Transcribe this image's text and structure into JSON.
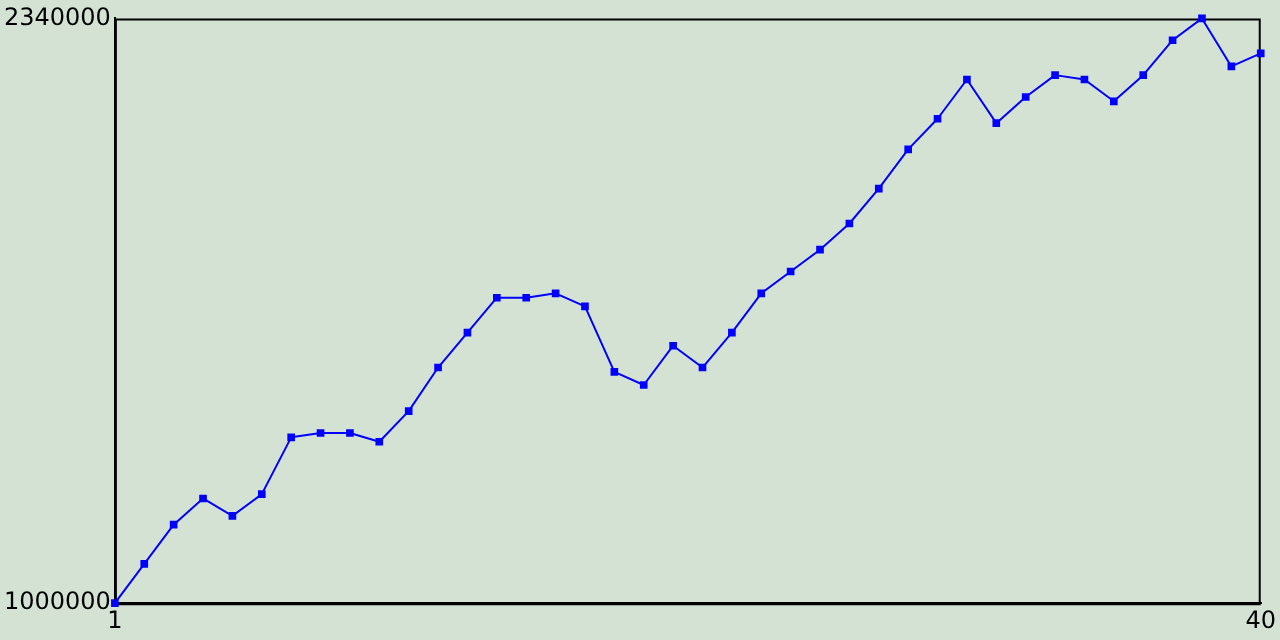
{
  "chart_data": {
    "type": "line",
    "x": [
      1,
      2,
      3,
      4,
      5,
      6,
      7,
      8,
      9,
      10,
      11,
      12,
      13,
      14,
      15,
      16,
      17,
      18,
      19,
      20,
      21,
      22,
      23,
      24,
      25,
      26,
      27,
      28,
      29,
      30,
      31,
      32,
      33,
      34,
      35,
      36,
      37,
      38,
      39,
      40
    ],
    "series": [
      {
        "color": "#0000ff",
        "values": [
          1000000,
          1090000,
          1180000,
          1240000,
          1200000,
          1250000,
          1380000,
          1390000,
          1390000,
          1370000,
          1440000,
          1540000,
          1620000,
          1700000,
          1700000,
          1710000,
          1680000,
          1530000,
          1500000,
          1590000,
          1540000,
          1620000,
          1710000,
          1760000,
          1810000,
          1870000,
          1950000,
          2040000,
          2110000,
          2200000,
          2100000,
          2160000,
          2210000,
          2200000,
          2150000,
          2210000,
          2290000,
          2340000,
          2230000,
          2260000
        ]
      }
    ],
    "xlim": [
      1,
      40
    ],
    "xticks": [
      1,
      40
    ],
    "ylim": [
      1000000,
      2340000
    ],
    "yticks": [
      1000000,
      2340000
    ],
    "grid": false,
    "legend": false,
    "marker": "square",
    "line_style": "solid"
  }
}
